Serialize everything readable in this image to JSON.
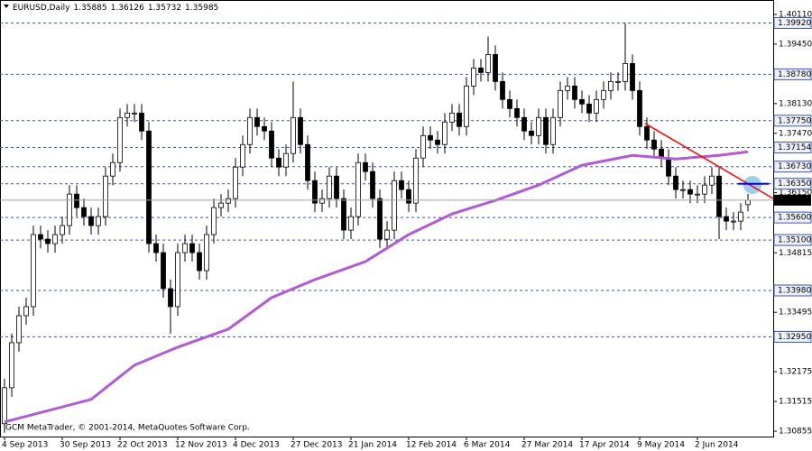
{
  "chart_data": {
    "type": "candlestick",
    "symbol": "EURUSD,Daily",
    "footer": "GCM MetaTrader, © 2001-2014, MetaQuotes Software Corp.",
    "categories": [
      "4 Sep 2013",
      null,
      null,
      null,
      null,
      null,
      null,
      null,
      "30 Sep 2013",
      null,
      null,
      null,
      null,
      null,
      null,
      null,
      "22 Oct 2013",
      null,
      null,
      null,
      null,
      null,
      null,
      null,
      "12 Nov 2013",
      null,
      null,
      null,
      null,
      null,
      null,
      null,
      "4 Dec 2013",
      null,
      null,
      null,
      null,
      null,
      null,
      null,
      "27 Dec 2013",
      null,
      null,
      null,
      null,
      null,
      null,
      null,
      "21 Jan 2014",
      null,
      null,
      null,
      null,
      null,
      null,
      null,
      "12 Feb 2014",
      null,
      null,
      null,
      null,
      null,
      null,
      null,
      "6 Mar 2014",
      null,
      null,
      null,
      null,
      null,
      null,
      null,
      "27 Mar 2014",
      null,
      null,
      null,
      null,
      null,
      null,
      null,
      "17 Apr 2014",
      null,
      null,
      null,
      null,
      null,
      null,
      null,
      "9 May 2014",
      null,
      null,
      null,
      null,
      null,
      null,
      null,
      "2 Jun 2014",
      null,
      null,
      null,
      null,
      null,
      null,
      null
    ],
    "series": [
      {
        "up_color": "#ffffff",
        "down_color": "#000000",
        "edge_color": "#000000",
        "open": [
          1.3102,
          1.3182,
          1.3282,
          1.3342,
          1.3362,
          1.3522,
          1.3512,
          1.3502,
          1.3522,
          1.3542,
          1.3612,
          1.3582,
          1.3562,
          1.3542,
          1.3562,
          1.3652,
          1.3682,
          1.3782,
          1.3792,
          1.3792,
          1.3752,
          1.3502,
          1.3482,
          1.3402,
          1.3362,
          1.3482,
          1.3502,
          1.3482,
          1.3442,
          1.3522,
          1.3582,
          1.3592,
          1.3602,
          1.3672,
          1.3722,
          1.3782,
          1.3762,
          1.3752,
          1.3692,
          1.3672,
          1.3702,
          1.3782,
          1.3722,
          1.3642,
          1.3592,
          1.3602,
          1.3652,
          1.3602,
          1.3532,
          1.3562,
          1.3682,
          1.3662,
          1.3602,
          1.3512,
          1.3532,
          1.3642,
          1.3622,
          1.3592,
          1.3692,
          1.3742,
          1.3732,
          1.3722,
          1.3772,
          1.3792,
          1.3762,
          1.3852,
          1.3892,
          1.3882,
          1.3922,
          1.3862,
          1.3822,
          1.3802,
          1.3782,
          1.3752,
          1.3742,
          1.3782,
          1.3722,
          1.3782,
          1.3842,
          1.3852,
          1.3822,
          1.3812,
          1.3792,
          1.3822,
          1.3842,
          1.3862,
          1.3862,
          1.3902,
          1.3842,
          1.3762,
          1.3732,
          1.3712,
          1.3692,
          1.3652,
          1.3622,
          1.3622,
          1.3612,
          1.3612,
          1.3632,
          1.3652,
          1.3562,
          1.3552,
          1.3552,
          1.35885
        ],
        "high": [
          1.3202,
          1.3302,
          1.3362,
          1.3382,
          1.3542,
          1.3542,
          1.3532,
          1.3542,
          1.3562,
          1.3632,
          1.3632,
          1.3602,
          1.3582,
          1.3582,
          1.3672,
          1.3702,
          1.3802,
          1.3812,
          1.3812,
          1.3812,
          1.3772,
          1.3522,
          1.3502,
          1.3422,
          1.3502,
          1.3522,
          1.3522,
          1.3502,
          1.3542,
          1.3602,
          1.3612,
          1.3622,
          1.3692,
          1.3742,
          1.3802,
          1.3802,
          1.3782,
          1.3772,
          1.3712,
          1.3722,
          1.3862,
          1.3802,
          1.3742,
          1.3662,
          1.3622,
          1.3672,
          1.3672,
          1.3622,
          1.3582,
          1.3702,
          1.3702,
          1.3682,
          1.3622,
          1.3552,
          1.3662,
          1.3662,
          1.3642,
          1.3712,
          1.3762,
          1.3762,
          1.3752,
          1.3792,
          1.3812,
          1.3812,
          1.3872,
          1.3912,
          1.3912,
          1.3962,
          1.3942,
          1.3882,
          1.3842,
          1.3822,
          1.3802,
          1.3772,
          1.3802,
          1.3802,
          1.3802,
          1.3862,
          1.3872,
          1.3872,
          1.3842,
          1.3832,
          1.3842,
          1.3862,
          1.3882,
          1.3882,
          1.3992,
          1.3922,
          1.3862,
          1.3782,
          1.3752,
          1.3732,
          1.3712,
          1.3672,
          1.3642,
          1.3642,
          1.3632,
          1.3652,
          1.3672,
          1.3672,
          1.3582,
          1.3572,
          1.3592,
          1.36126
        ],
        "low": [
          1.3082,
          1.3162,
          1.3262,
          1.3322,
          1.3342,
          1.3492,
          1.3482,
          1.3482,
          1.3502,
          1.3522,
          1.3562,
          1.3542,
          1.3522,
          1.3522,
          1.3542,
          1.3632,
          1.3662,
          1.3762,
          1.3772,
          1.3732,
          1.3482,
          1.3462,
          1.3382,
          1.3302,
          1.3342,
          1.3462,
          1.3462,
          1.3422,
          1.3422,
          1.3502,
          1.3562,
          1.3572,
          1.3582,
          1.3652,
          1.3702,
          1.3742,
          1.3732,
          1.3672,
          1.3652,
          1.3652,
          1.3682,
          1.3702,
          1.3622,
          1.3572,
          1.3572,
          1.3582,
          1.3582,
          1.3512,
          1.3512,
          1.3542,
          1.3642,
          1.3582,
          1.3492,
          1.3492,
          1.3512,
          1.3602,
          1.3572,
          1.3572,
          1.3672,
          1.3712,
          1.3702,
          1.3702,
          1.3752,
          1.3742,
          1.3742,
          1.3832,
          1.3862,
          1.3862,
          1.3842,
          1.3802,
          1.3782,
          1.3762,
          1.3732,
          1.3722,
          1.3722,
          1.3702,
          1.3702,
          1.3762,
          1.3822,
          1.3802,
          1.3792,
          1.3772,
          1.3772,
          1.3802,
          1.3822,
          1.3842,
          1.3842,
          1.3822,
          1.3742,
          1.3712,
          1.3692,
          1.3672,
          1.3632,
          1.3602,
          1.3602,
          1.3592,
          1.3592,
          1.3592,
          1.3612,
          1.3512,
          1.3532,
          1.3532,
          1.3532,
          1.35732
        ],
        "close": [
          1.3182,
          1.3282,
          1.3342,
          1.3362,
          1.3522,
          1.3512,
          1.3502,
          1.3522,
          1.3542,
          1.3612,
          1.3582,
          1.3562,
          1.3542,
          1.3562,
          1.3652,
          1.3682,
          1.3782,
          1.3792,
          1.3792,
          1.3752,
          1.3502,
          1.3482,
          1.3402,
          1.3362,
          1.3482,
          1.3502,
          1.3482,
          1.3442,
          1.3522,
          1.3582,
          1.3592,
          1.3602,
          1.3672,
          1.3722,
          1.3782,
          1.3762,
          1.3752,
          1.3692,
          1.3672,
          1.3702,
          1.3782,
          1.3722,
          1.3642,
          1.3592,
          1.3602,
          1.3652,
          1.3602,
          1.3532,
          1.3562,
          1.3682,
          1.3662,
          1.3602,
          1.3512,
          1.3532,
          1.3642,
          1.3622,
          1.3592,
          1.3692,
          1.3742,
          1.3732,
          1.3722,
          1.3772,
          1.3792,
          1.3762,
          1.3852,
          1.3892,
          1.3882,
          1.3922,
          1.3862,
          1.3822,
          1.3802,
          1.3782,
          1.3752,
          1.3742,
          1.3782,
          1.3722,
          1.3782,
          1.3842,
          1.3852,
          1.3822,
          1.3812,
          1.3792,
          1.3822,
          1.3842,
          1.3862,
          1.3862,
          1.3902,
          1.3842,
          1.3762,
          1.3732,
          1.3712,
          1.3692,
          1.3652,
          1.3622,
          1.3622,
          1.3612,
          1.3612,
          1.3632,
          1.3652,
          1.3562,
          1.3552,
          1.3552,
          1.3572,
          1.35985
        ]
      }
    ],
    "overlays": [
      {
        "type": "line",
        "color": "#b25ad6",
        "width": 3,
        "x": [
          0,
          12,
          18,
          24,
          31,
          37,
          43,
          50,
          56,
          62,
          68,
          74,
          80,
          87,
          93,
          99,
          103
        ],
        "values": [
          1.3106,
          1.3156,
          1.3232,
          1.3272,
          1.3312,
          1.3382,
          1.3422,
          1.3462,
          1.3522,
          1.3568,
          1.3598,
          1.3632,
          1.3676,
          1.3698,
          1.369,
          1.3698,
          1.3706
        ]
      },
      {
        "type": "line",
        "color": "#ff0000",
        "width": 1.5,
        "x": [
          88.75,
          106.5
        ],
        "values": [
          1.3769,
          1.3602
        ]
      },
      {
        "type": "line",
        "color": "#0000ff",
        "width": 2,
        "x": [
          101.6,
          105.9
        ],
        "values": [
          1.3635,
          1.3635
        ]
      }
    ],
    "levels": [
      {
        "value": 1.3992,
        "label": "1.39920"
      },
      {
        "value": 1.3878,
        "label": "1.38780"
      },
      {
        "value": 1.3775,
        "label": "1.37750"
      },
      {
        "value": 1.37154,
        "label": "1.37154"
      },
      {
        "value": 1.3673,
        "label": "1.36730"
      },
      {
        "value": 1.3635,
        "label": "1.36350"
      },
      {
        "value": 1.356,
        "label": "1.35600"
      },
      {
        "value": 1.351,
        "label": "1.35100"
      },
      {
        "value": 1.3398,
        "label": "1.33980"
      },
      {
        "value": 1.3295,
        "label": "1.32950"
      }
    ],
    "level_color": "#3a55b5",
    "xlim": [
      -0.625,
      106.5
    ],
    "ylim": [
      1.30735,
      1.4027
    ],
    "yticks": [
      {
        "value": 1.4011,
        "label": "1.40110"
      },
      {
        "value": 1.3945,
        "label": "1.39450"
      },
      {
        "value": 1.3813,
        "label": "1.38130"
      },
      {
        "value": 1.3747,
        "label": "1.37470"
      },
      {
        "value": 1.3615,
        "label": "1.36150"
      },
      {
        "value": 1.34815,
        "label": "1.34815"
      },
      {
        "value": 1.33495,
        "label": "1.33495"
      },
      {
        "value": 1.32175,
        "label": "1.32175"
      },
      {
        "value": 1.31515,
        "label": "1.31515"
      },
      {
        "value": 1.30855,
        "label": "1.30855"
      }
    ]
  }
}
